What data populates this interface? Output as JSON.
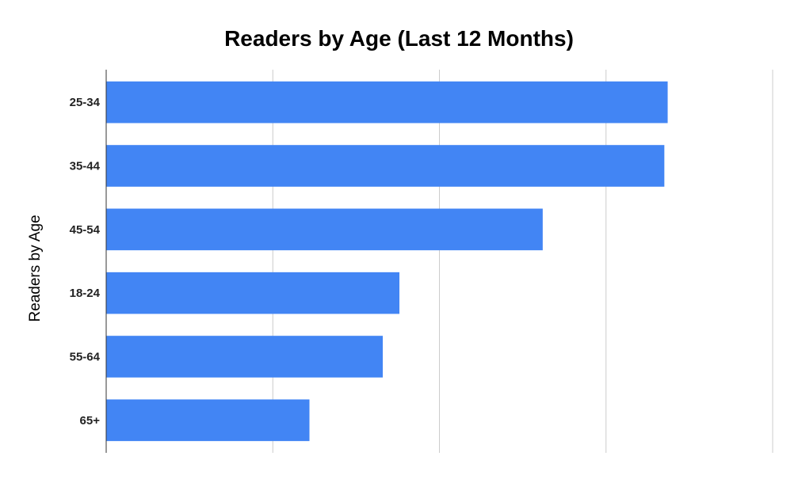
{
  "chart_data": {
    "type": "bar",
    "orientation": "horizontal",
    "title": "Readers by Age (Last 12 Months)",
    "ylabel": "Readers by Age",
    "xlabel": "",
    "categories": [
      "25-34",
      "35-44",
      "45-54",
      "18-24",
      "55-64",
      "65+"
    ],
    "values": [
      33.7,
      33.5,
      26.2,
      17.6,
      16.6,
      12.2
    ],
    "xlim": [
      0,
      40
    ],
    "x_gridlines": [
      0,
      10,
      20,
      30,
      40
    ],
    "x_tick_labels_shown": false,
    "grid": true,
    "legend": "none",
    "bar_color": "#4285f4"
  }
}
